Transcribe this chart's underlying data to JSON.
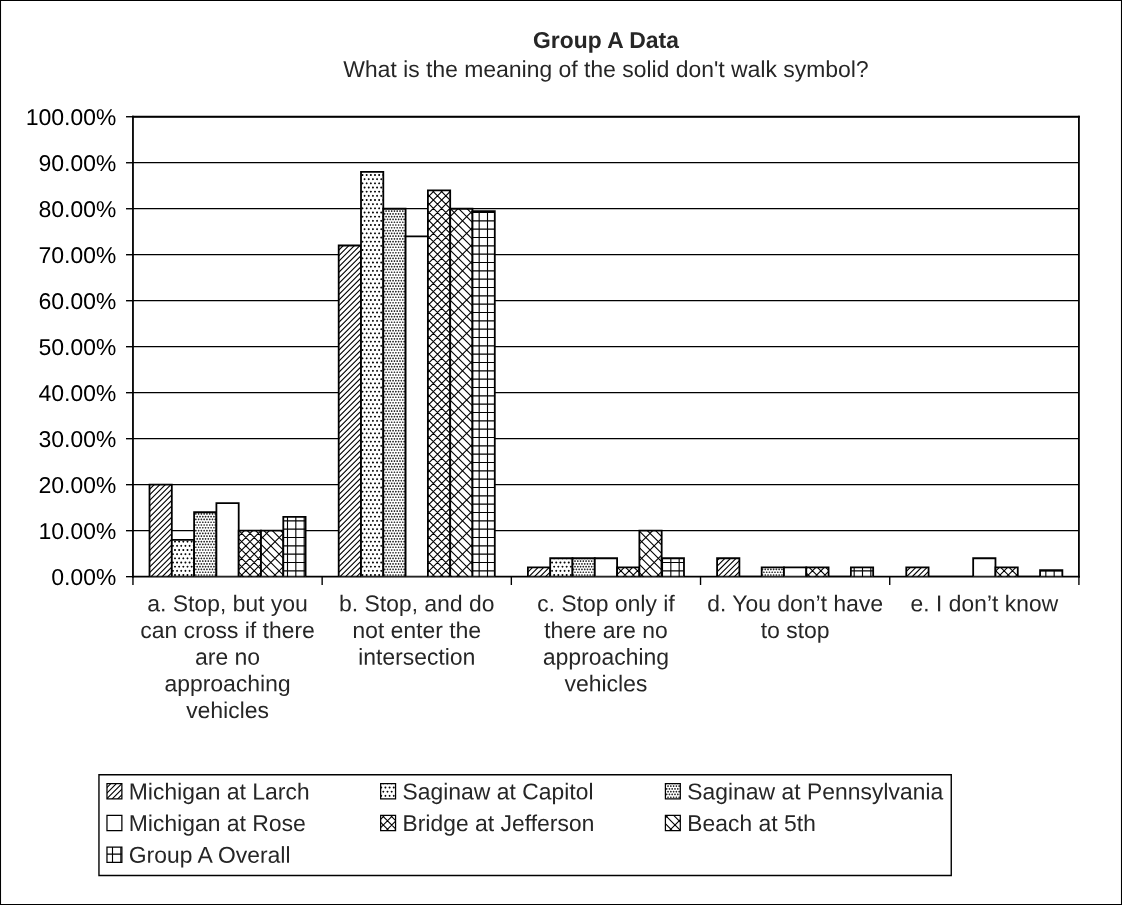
{
  "chart_data": {
    "type": "bar",
    "title": "Group A Data",
    "subtitle": "What is the meaning of the solid don't walk symbol?",
    "categories": [
      "a. Stop, but you can cross if there are no approaching vehicles",
      "b. Stop, and do not enter the intersection",
      "c. Stop only if there are no approaching vehicles",
      "d. You don’t have to stop",
      "e. I don’t know"
    ],
    "series": [
      {
        "name": "Michigan at Larch",
        "color": "#000000",
        "values": [
          20,
          72,
          2,
          4,
          2
        ]
      },
      {
        "name": "Saginaw at Capitol",
        "color": "#000000",
        "values": [
          8,
          88,
          4,
          0,
          0
        ]
      },
      {
        "name": "Saginaw at Pennsylvania",
        "color": "#000000",
        "values": [
          14,
          80,
          4,
          2,
          0
        ]
      },
      {
        "name": "Michigan at Rose",
        "color": "#000000",
        "values": [
          16,
          74,
          4,
          2,
          4
        ]
      },
      {
        "name": "Bridge at Jefferson",
        "color": "#000000",
        "values": [
          10,
          84,
          2,
          2,
          2
        ]
      },
      {
        "name": "Beach at 5th",
        "color": "#000000",
        "values": [
          10,
          80,
          10,
          0,
          0
        ]
      },
      {
        "name": "Group A Overall",
        "color": "#000000",
        "values": [
          13,
          79.5,
          4,
          2,
          1.4
        ]
      }
    ],
    "ylim": [
      0,
      100
    ],
    "yticks": [
      {
        "value": 0,
        "label": "0.00%"
      },
      {
        "value": 10,
        "label": "10.00%"
      },
      {
        "value": 20,
        "label": "20.00%"
      },
      {
        "value": 30,
        "label": "30.00%"
      },
      {
        "value": 40,
        "label": "40.00%"
      },
      {
        "value": 50,
        "label": "50.00%"
      },
      {
        "value": 60,
        "label": "60.00%"
      },
      {
        "value": 70,
        "label": "70.00%"
      },
      {
        "value": 80,
        "label": "80.00%"
      },
      {
        "value": 90,
        "label": "90.00%"
      },
      {
        "value": 100,
        "label": "100.00%"
      }
    ],
    "grid": "y",
    "legend": "bottom"
  }
}
